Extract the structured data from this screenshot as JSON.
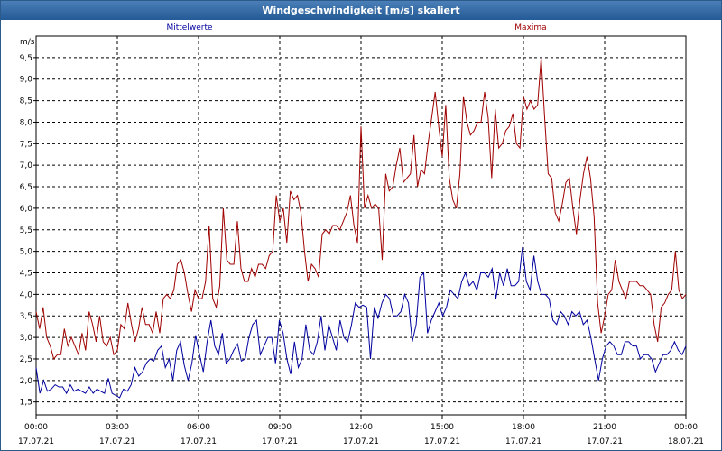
{
  "window": {
    "title": "Windgeschwindigkeit [m/s] skaliert"
  },
  "colors": {
    "mean": "#0000a0",
    "max": "#a00000",
    "grid": "#000000"
  },
  "chart_data": {
    "type": "line",
    "title": "Windgeschwindigkeit [m/s] skaliert",
    "ylabel": "m/s",
    "ylim": [
      1.2,
      10.0
    ],
    "xlim_hours": [
      0,
      24
    ],
    "y_ticks": [
      "1,5",
      "2,0",
      "2,5",
      "3,0",
      "3,5",
      "4,0",
      "4,5",
      "5,0",
      "5,5",
      "6,0",
      "6,5",
      "7,0",
      "7,5",
      "8,0",
      "8,5",
      "9,0",
      "9,5"
    ],
    "x_ticks": [
      {
        "time": "00:00",
        "date": "17.07.21"
      },
      {
        "time": "03:00",
        "date": "17.07.21"
      },
      {
        "time": "06:00",
        "date": "17.07.21"
      },
      {
        "time": "09:00",
        "date": "17.07.21"
      },
      {
        "time": "12:00",
        "date": "17.07.21"
      },
      {
        "time": "15:00",
        "date": "17.07.21"
      },
      {
        "time": "18:00",
        "date": "17.07.21"
      },
      {
        "time": "21:00",
        "date": "17.07.21"
      },
      {
        "time": "00:00",
        "date": "18.07.21"
      }
    ],
    "grid": true,
    "legend_position": "top",
    "series": [
      {
        "name": "Mittelwerte",
        "values": [
          2.3,
          1.7,
          2.0,
          1.75,
          1.8,
          1.9,
          1.85,
          1.85,
          1.7,
          1.9,
          1.75,
          1.8,
          1.75,
          1.7,
          1.85,
          1.7,
          1.8,
          1.75,
          1.7,
          2.05,
          1.7,
          1.65,
          1.6,
          1.8,
          1.75,
          1.9,
          2.3,
          2.1,
          2.2,
          2.4,
          2.5,
          2.45,
          2.7,
          2.8,
          2.3,
          2.5,
          2.0,
          2.7,
          2.9,
          2.35,
          2.0,
          2.4,
          3.05,
          2.6,
          2.2,
          2.9,
          3.4,
          2.8,
          2.6,
          3.1,
          2.4,
          2.5,
          2.7,
          2.85,
          2.45,
          2.5,
          3.0,
          3.3,
          3.4,
          2.6,
          2.8,
          3.0,
          3.0,
          2.4,
          3.4,
          3.1,
          2.5,
          2.15,
          2.9,
          2.3,
          2.5,
          3.3,
          2.7,
          2.6,
          2.9,
          3.5,
          2.7,
          3.3,
          3.0,
          2.7,
          3.4,
          3.0,
          2.9,
          3.3,
          3.8,
          3.7,
          3.75,
          3.7,
          2.5,
          3.7,
          3.45,
          3.8,
          4.0,
          3.9,
          3.5,
          3.5,
          3.6,
          4.0,
          3.8,
          2.9,
          3.3,
          4.4,
          4.5,
          3.1,
          3.4,
          3.6,
          3.8,
          3.5,
          3.7,
          4.1,
          4.0,
          3.9,
          4.3,
          4.5,
          4.2,
          4.3,
          4.1,
          4.5,
          4.5,
          4.4,
          4.6,
          3.9,
          4.5,
          4.2,
          4.6,
          4.2,
          4.2,
          4.3,
          5.1,
          4.3,
          4.1,
          4.9,
          4.3,
          4.0,
          4.0,
          3.9,
          3.4,
          3.3,
          3.6,
          3.5,
          3.3,
          3.6,
          3.5,
          3.6,
          3.3,
          3.4,
          3.0,
          2.5,
          2.0,
          2.5,
          2.8,
          2.9,
          2.8,
          2.6,
          2.6,
          2.9,
          2.9,
          2.8,
          2.8,
          2.5,
          2.6,
          2.6,
          2.5,
          2.2,
          2.4,
          2.6,
          2.6,
          2.7,
          2.9,
          2.7,
          2.6,
          2.8
        ]
      },
      {
        "name": "Maxima",
        "values": [
          3.6,
          3.2,
          3.7,
          3.0,
          2.8,
          2.5,
          2.6,
          2.6,
          3.2,
          2.8,
          3.0,
          2.8,
          2.6,
          3.1,
          2.7,
          3.6,
          3.3,
          2.9,
          3.5,
          2.9,
          2.8,
          3.0,
          2.6,
          2.7,
          3.3,
          3.2,
          3.8,
          3.3,
          2.9,
          3.2,
          3.7,
          3.3,
          3.3,
          3.1,
          3.6,
          3.1,
          3.9,
          4.0,
          3.9,
          4.1,
          4.7,
          4.8,
          4.5,
          4.0,
          3.6,
          4.1,
          3.9,
          3.9,
          4.3,
          5.6,
          3.9,
          3.7,
          4.2,
          6.0,
          4.8,
          4.7,
          4.7,
          5.7,
          4.6,
          4.3,
          4.3,
          4.6,
          4.4,
          4.7,
          4.7,
          4.6,
          4.9,
          5.0,
          6.3,
          5.7,
          6.0,
          5.2,
          6.4,
          6.2,
          6.3,
          5.9,
          5.0,
          4.3,
          4.7,
          4.6,
          4.4,
          5.4,
          5.5,
          5.4,
          5.6,
          5.6,
          5.5,
          5.7,
          5.9,
          6.3,
          5.6,
          5.2,
          7.9,
          6.0,
          6.3,
          6.0,
          6.1,
          6.0,
          4.8,
          6.8,
          6.4,
          6.5,
          7.0,
          7.4,
          6.6,
          6.7,
          6.8,
          7.7,
          6.5,
          6.9,
          6.8,
          7.5,
          8.1,
          8.7,
          7.9,
          7.2,
          8.4,
          6.7,
          6.2,
          6.0,
          6.8,
          8.6,
          8.0,
          7.7,
          7.8,
          8.0,
          8.0,
          8.7,
          8.1,
          6.7,
          8.3,
          7.4,
          7.5,
          7.8,
          7.9,
          8.2,
          7.5,
          7.4,
          8.6,
          8.3,
          8.5,
          8.3,
          8.4,
          9.5,
          8.1,
          6.8,
          6.7,
          5.9,
          5.7,
          6.1,
          6.6,
          6.7,
          6.0,
          5.4,
          6.2,
          6.8,
          7.2,
          6.7,
          5.8,
          3.8,
          3.1,
          3.5,
          4.0,
          4.1,
          4.8,
          4.3,
          4.1,
          3.9,
          4.3,
          4.3,
          4.3,
          4.2,
          4.2,
          4.1,
          4.0,
          3.3,
          2.9,
          3.7,
          3.8,
          4.0,
          4.1,
          5.0,
          4.1,
          3.9,
          4.0
        ]
      }
    ]
  }
}
